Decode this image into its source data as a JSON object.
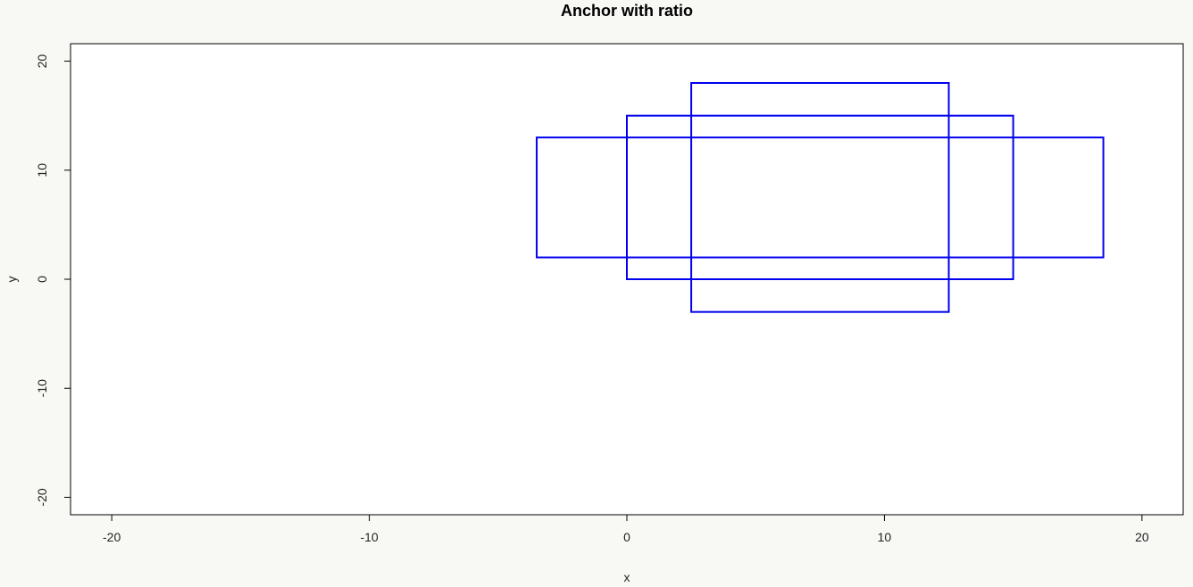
{
  "chart_data": {
    "type": "rectangles",
    "title": "Anchor with ratio",
    "xlabel": "x",
    "ylabel": "y",
    "xlim": [
      -21.6,
      21.6
    ],
    "ylim": [
      -21.6,
      21.6
    ],
    "x_ticks": [
      -20,
      -10,
      0,
      10,
      20
    ],
    "y_ticks": [
      -20,
      -10,
      0,
      10,
      20
    ],
    "x_tick_labels": [
      "-20",
      "-10",
      "0",
      "10",
      "20"
    ],
    "y_tick_labels": [
      "-20",
      "-10",
      "0",
      "10",
      "20"
    ],
    "grid": false,
    "stroke_color": "#0000ee",
    "rectangles": [
      {
        "x0": 2.5,
        "x1": 12.5,
        "y0": -3,
        "y1": 18
      },
      {
        "x0": 0,
        "x1": 15,
        "y0": 0,
        "y1": 15
      },
      {
        "x0": -3.5,
        "x1": 18.5,
        "y0": 2,
        "y1": 13
      }
    ]
  }
}
